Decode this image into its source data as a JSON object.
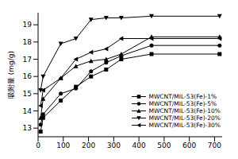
{
  "chart_data": {
    "type": "line",
    "y_label": "吸附量 (mg/g)",
    "x": [
      10,
      20,
      90,
      150,
      210,
      270,
      330,
      450,
      720
    ],
    "xlim": [
      0,
      730
    ],
    "xticks": [
      0,
      100,
      200,
      300,
      400,
      500,
      600,
      700
    ],
    "ylim": [
      12.5,
      19.7
    ],
    "yticks": [
      13,
      14,
      15,
      16,
      17,
      18,
      19
    ],
    "grid": false,
    "legend": "lower right",
    "series": [
      {
        "name": "MWCNT/MIL-53(Fe)-1%",
        "color": "#000000",
        "marker": "square",
        "values": [
          12.8,
          13.6,
          14.6,
          15.4,
          16.0,
          16.4,
          17.0,
          17.3,
          17.3
        ]
      },
      {
        "name": "MWCNT/MIL-53(Fe)-5%",
        "color": "#000000",
        "marker": "circle",
        "values": [
          13.2,
          13.8,
          15.0,
          15.3,
          16.3,
          16.8,
          17.2,
          17.8,
          17.8
        ]
      },
      {
        "name": "MWCNT/MIL-53(Fe)-10%",
        "color": "#000000",
        "marker": "triangle-up",
        "values": [
          13.6,
          14.7,
          15.9,
          16.6,
          16.9,
          17.0,
          17.3,
          18.3,
          18.3
        ]
      },
      {
        "name": "MWCNT/MIL-53(Fe)-20%",
        "color": "#000000",
        "marker": "triangle-down",
        "values": [
          15.2,
          16.0,
          17.9,
          18.2,
          19.3,
          19.4,
          19.4,
          19.5,
          19.5
        ]
      },
      {
        "name": "MWCNT/MIL-53(Fe)-30%",
        "color": "#000000",
        "marker": "triangle-left",
        "values": [
          14.3,
          15.2,
          15.9,
          17.0,
          17.4,
          17.6,
          18.2,
          18.2,
          18.2
        ]
      }
    ]
  }
}
